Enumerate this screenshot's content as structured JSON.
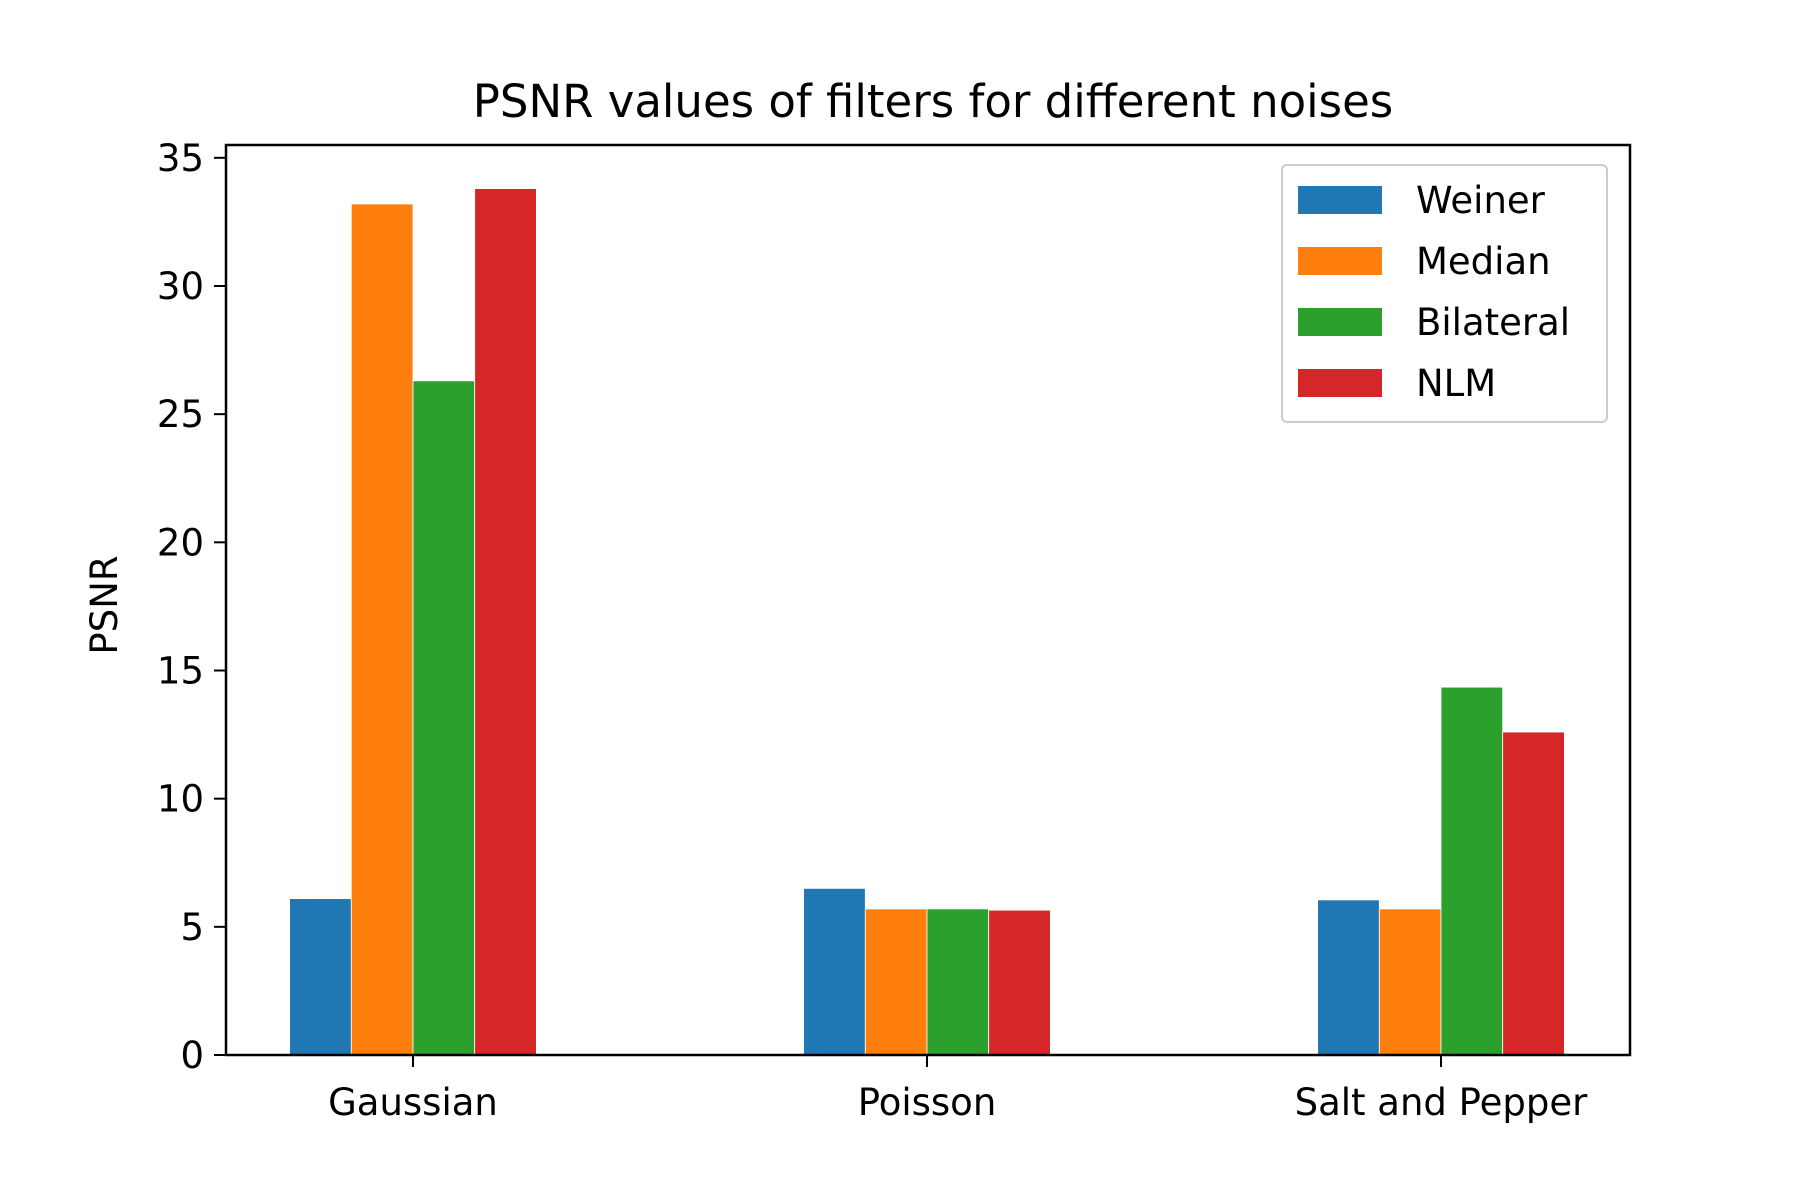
{
  "chart_data": {
    "type": "bar",
    "title": "PSNR values of filters for different noises",
    "xlabel": "",
    "ylabel": "PSNR",
    "categories": [
      "Gaussian",
      "Poisson",
      "Salt and Pepper"
    ],
    "series": [
      {
        "name": "Weiner",
        "color": "#1f77b4",
        "values": [
          6.1,
          6.5,
          6.05
        ]
      },
      {
        "name": "Median",
        "color": "#ff7f0e",
        "values": [
          33.2,
          5.7,
          5.7
        ]
      },
      {
        "name": "Bilateral",
        "color": "#2ca02c",
        "values": [
          26.3,
          5.7,
          14.35
        ]
      },
      {
        "name": "NLM",
        "color": "#d62728",
        "values": [
          33.8,
          5.65,
          12.6
        ]
      }
    ],
    "ylim": [
      0,
      35.5
    ],
    "yticks": [
      0,
      5,
      10,
      15,
      20,
      25,
      30,
      35
    ],
    "yticklabels": [
      "0",
      "5",
      "10",
      "15",
      "20",
      "25",
      "30",
      "35"
    ],
    "grid": false,
    "legend_position": "top-right"
  }
}
